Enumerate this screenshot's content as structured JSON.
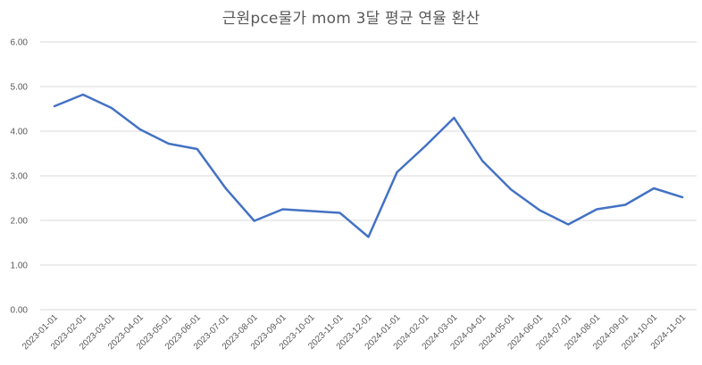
{
  "chart_data": {
    "type": "line",
    "title": "근원pce물가 mom 3달 평균 연율 환산",
    "xlabel": "",
    "ylabel": "",
    "ylim": [
      0,
      6
    ],
    "yticks": [
      "0.00",
      "1.00",
      "2.00",
      "3.00",
      "4.00",
      "5.00",
      "6.00"
    ],
    "grid": true,
    "legend": "none",
    "categories": [
      "2023-01-01",
      "2023-02-01",
      "2023-03-01",
      "2023-04-01",
      "2023-05-01",
      "2023-06-01",
      "2023-07-01",
      "2023-08-01",
      "2023-09-01",
      "2023-10-01",
      "2023-11-01",
      "2023-12-01",
      "2024-01-01",
      "2024-02-01",
      "2024-03-01",
      "2024-04-01",
      "2024-05-01",
      "2024-06-01",
      "2024-07-01",
      "2024-08-01",
      "2024-09-01",
      "2024-10-01",
      "2024-11-01"
    ],
    "series": [
      {
        "color": "#4472c4",
        "values": [
          4.56,
          4.82,
          4.52,
          4.04,
          3.72,
          3.6,
          2.72,
          1.99,
          2.25,
          2.21,
          2.17,
          1.63,
          3.08,
          3.67,
          4.3,
          3.33,
          2.69,
          2.23,
          1.91,
          2.25,
          2.35,
          2.72,
          2.52
        ]
      }
    ]
  }
}
